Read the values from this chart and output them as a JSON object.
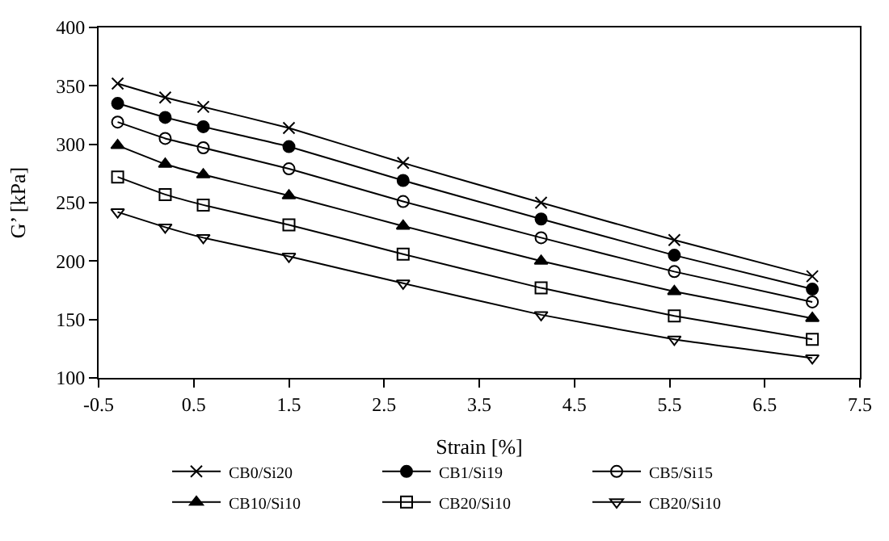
{
  "chart_data": {
    "type": "line",
    "xlabel": "Strain [%]",
    "ylabel": "G’ [kPa]",
    "x": [
      -0.3,
      0.2,
      0.6,
      1.5,
      2.7,
      4.15,
      5.55,
      7.0
    ],
    "xlim": [
      -0.5,
      7.5
    ],
    "xticks": [
      -0.5,
      0.5,
      1.5,
      2.5,
      3.5,
      4.5,
      5.5,
      6.5,
      7.5
    ],
    "ylim": [
      100,
      400
    ],
    "yticks": [
      100,
      150,
      200,
      250,
      300,
      350,
      400
    ],
    "legend": "bottom",
    "line_style": "solid",
    "series": [
      {
        "name": "CB0/Si20",
        "color": "#000000",
        "marker": "cross",
        "values": [
          352,
          340,
          332,
          314,
          284,
          250,
          218,
          187
        ]
      },
      {
        "name": "CB1/Si19",
        "color": "#000000",
        "marker": "circle",
        "values": [
          335,
          323,
          315,
          298,
          269,
          236,
          205,
          176
        ]
      },
      {
        "name": "CB5/Si15",
        "color": "#000000",
        "marker": "circle-open",
        "values": [
          319,
          305,
          297,
          279,
          251,
          220,
          191,
          165
        ]
      },
      {
        "name": "CB10/Si10",
        "color": "#000000",
        "marker": "triangle",
        "values": [
          299,
          283,
          274,
          256,
          230,
          200,
          174,
          151
        ]
      },
      {
        "name": "CB20/Si10",
        "color": "#000000",
        "marker": "square-open",
        "values": [
          272,
          257,
          248,
          231,
          206,
          177,
          153,
          133
        ]
      },
      {
        "name": "CB20/Si10",
        "color": "#000000",
        "marker": "triangle-down-open",
        "values": [
          242,
          229,
          220,
          204,
          181,
          154,
          133,
          117
        ]
      }
    ]
  }
}
